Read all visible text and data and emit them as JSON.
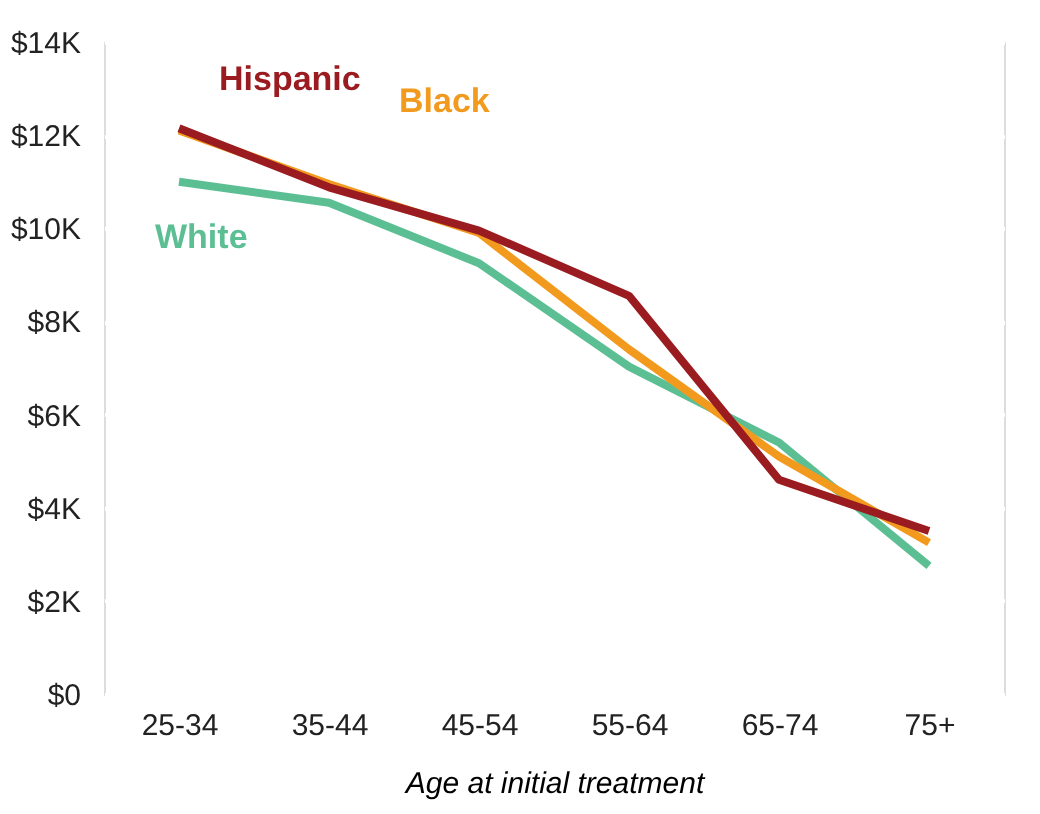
{
  "chart_data": {
    "type": "line",
    "xlabel": "Age at initial treatment",
    "categories": [
      "25-34",
      "35-44",
      "45-54",
      "55-64",
      "65-74",
      "75+"
    ],
    "series": [
      {
        "name": "White",
        "color": "#5cbf94",
        "values": [
          11000,
          10550,
          9250,
          7030,
          5400,
          2750
        ]
      },
      {
        "name": "Black",
        "color": "#f29a1d",
        "values": [
          12100,
          10950,
          9900,
          7400,
          5100,
          3250
        ]
      },
      {
        "name": "Hispanic",
        "color": "#9b1c20",
        "values": [
          12150,
          10880,
          9950,
          8550,
          4600,
          3500
        ]
      }
    ],
    "ylim": [
      0,
      14000
    ],
    "yticks": [
      {
        "value": 0,
        "label": "$0"
      },
      {
        "value": 2000,
        "label": "$2K"
      },
      {
        "value": 4000,
        "label": "$4K"
      },
      {
        "value": 6000,
        "label": "$6K"
      },
      {
        "value": 8000,
        "label": "$8K"
      },
      {
        "value": 10000,
        "label": "$10K"
      },
      {
        "value": 12000,
        "label": "$12K"
      },
      {
        "value": 14000,
        "label": "$14K"
      }
    ],
    "grid": true,
    "legend": false,
    "marker": "none",
    "line_style": "solid"
  }
}
